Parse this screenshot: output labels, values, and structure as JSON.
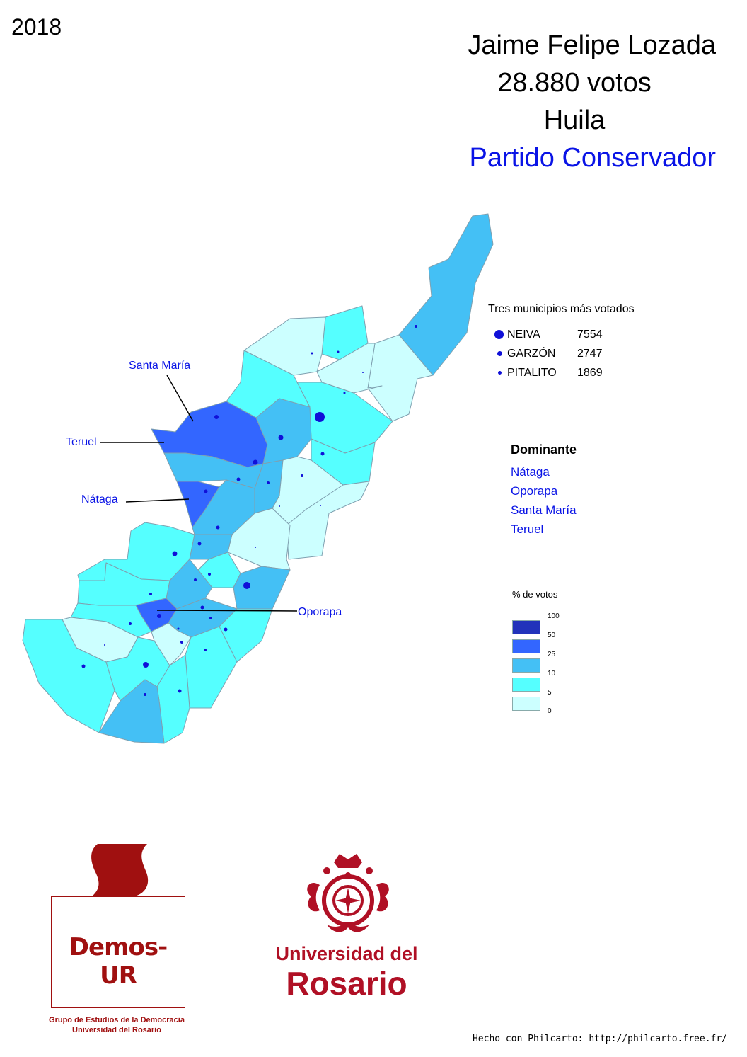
{
  "year": "2018",
  "title": {
    "candidate": "Jaime Felipe Lozada",
    "votes": "28.880 votos",
    "department": "Huila",
    "party": "Partido Conservador"
  },
  "top_municipalities": {
    "title": "Tres municipios más votados",
    "items": [
      {
        "name": "NEIVA",
        "value": "7554"
      },
      {
        "name": "GARZÓN",
        "value": "2747"
      },
      {
        "name": "PITALITO",
        "value": "1869"
      }
    ]
  },
  "dominante": {
    "title": "Dominante",
    "items": [
      "Nátaga",
      "Oporapa",
      "Santa María",
      "Teruel"
    ]
  },
  "map_labels": {
    "santa_maria": "Santa María",
    "teruel": "Teruel",
    "nataga": "Nátaga",
    "oporapa": "Oporapa"
  },
  "legend": {
    "title": "% de votos",
    "ticks": [
      "100",
      "50",
      "25",
      "10",
      "5",
      "0"
    ],
    "colors": [
      "#2233bb",
      "#3366ff",
      "#44c0f5",
      "#55ffff",
      "#ccffff"
    ]
  },
  "logos": {
    "demos_name": "Demos-UR",
    "demos_sub_1": "Grupo de Estudios de la Democracia",
    "demos_sub_2": "Universidad del Rosario",
    "ur_line1": "Universidad del",
    "ur_line2": "Rosario"
  },
  "footer": "Hecho con Philcarto: http://philcarto.free.fr/"
}
